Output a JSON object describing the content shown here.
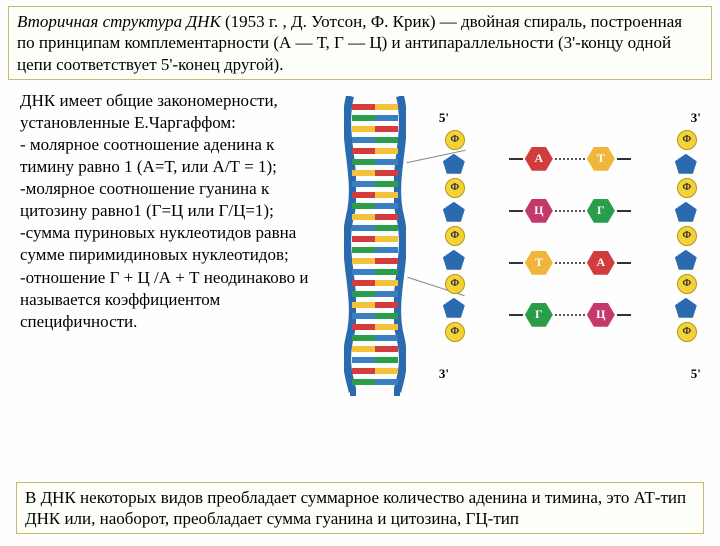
{
  "header": {
    "title_italic": "Вторичная структура ДНК",
    "title_rest": " (1953 г. , Д. Уотсон, Ф. Крик) — двойная спираль, построенная по принципам комплементарности (А — Т, Г — Ц) и антипараллельности (3'-концу одной цепи соответствует 5'-конец другой)."
  },
  "bodytext": {
    "p1": "ДНК имеет общие закономерности, установленные Е.Чаргаффом:",
    "b1": "- молярное соотношение аденина к тимину равно 1 (А=Т, или А/Т = 1);",
    "b2": "-молярное соотношение гуанина к цитозину равно1 (Г=Ц или Г/Ц=1);",
    "b3": "-сумма пуриновых нуклеотидов равна сумме пиримидиновых нуклеотидов;",
    "b4": "-отношение Г + Ц /А + Т неодинаково и называется коэффициентом специфичности."
  },
  "footer": {
    "text": "В ДНК некоторых видов преобладает суммарное количество аденина и тимина, это АТ-тип ДНК или, наоборот, преобладает сумма гуанина и цитозина, ГЦ-тип"
  },
  "helix": {
    "rung_colors": [
      "#d23c3c",
      "#2a9d4a",
      "#f2c23a",
      "#3a7fc4"
    ],
    "strand_color": "#2a6bb0",
    "num_rungs": 26
  },
  "schema": {
    "primes": {
      "tl": "5'",
      "tr": "3'",
      "bl": "3'",
      "br": "5'"
    },
    "phos_label": "Ф",
    "pairs": [
      {
        "l": "А",
        "lc": "#d23c3c",
        "r": "Т",
        "rc": "#f0b53a"
      },
      {
        "l": "Ц",
        "lc": "#c4396b",
        "r": "Г",
        "rc": "#2a9d4a"
      },
      {
        "l": "Т",
        "lc": "#f0b53a",
        "r": "А",
        "rc": "#d23c3c"
      },
      {
        "l": "Г",
        "lc": "#2a9d4a",
        "r": "Ц",
        "rc": "#c4396b"
      }
    ]
  }
}
